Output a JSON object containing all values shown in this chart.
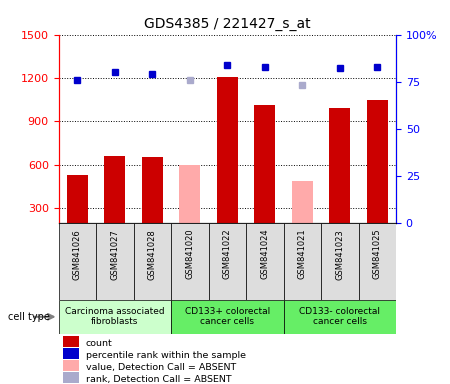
{
  "title": "GDS4385 / 221427_s_at",
  "samples": [
    "GSM841026",
    "GSM841027",
    "GSM841028",
    "GSM841020",
    "GSM841022",
    "GSM841024",
    "GSM841021",
    "GSM841023",
    "GSM841025"
  ],
  "count_values": [
    530,
    660,
    655,
    null,
    1205,
    1010,
    null,
    990,
    1050
  ],
  "count_absent": [
    null,
    null,
    null,
    600,
    null,
    null,
    490,
    null,
    null
  ],
  "rank_values": [
    76,
    80,
    79,
    null,
    84,
    83,
    null,
    82,
    83
  ],
  "rank_absent": [
    null,
    null,
    null,
    76,
    null,
    null,
    73,
    null,
    null
  ],
  "ylim_left": [
    200,
    1500
  ],
  "ylim_right": [
    0,
    100
  ],
  "yticks_left": [
    300,
    600,
    900,
    1200,
    1500
  ],
  "yticks_right": [
    0,
    25,
    50,
    75,
    100
  ],
  "bar_color_present": "#cc0000",
  "bar_color_absent": "#ffaaaa",
  "dot_color_present": "#0000cc",
  "dot_color_absent": "#aaaacc",
  "group_colors": [
    "#ccffcc",
    "#66ee66",
    "#66ee66"
  ],
  "group_labels": [
    "Carcinoma associated\nfibroblasts",
    "CD133+ colorectal\ncancer cells",
    "CD133- colorectal\ncancer cells"
  ],
  "group_ranges": [
    [
      0,
      3
    ],
    [
      3,
      6
    ],
    [
      6,
      9
    ]
  ],
  "legend_items": [
    {
      "color": "#cc0000",
      "label": "count"
    },
    {
      "color": "#0000cc",
      "label": "percentile rank within the sample"
    },
    {
      "color": "#ffaaaa",
      "label": "value, Detection Call = ABSENT"
    },
    {
      "color": "#aaaacc",
      "label": "rank, Detection Call = ABSENT"
    }
  ],
  "cell_type_label": "cell type",
  "title_fontsize": 10,
  "tick_fontsize": 8,
  "label_fontsize": 7,
  "sample_fontsize": 6,
  "group_fontsize": 6.5
}
